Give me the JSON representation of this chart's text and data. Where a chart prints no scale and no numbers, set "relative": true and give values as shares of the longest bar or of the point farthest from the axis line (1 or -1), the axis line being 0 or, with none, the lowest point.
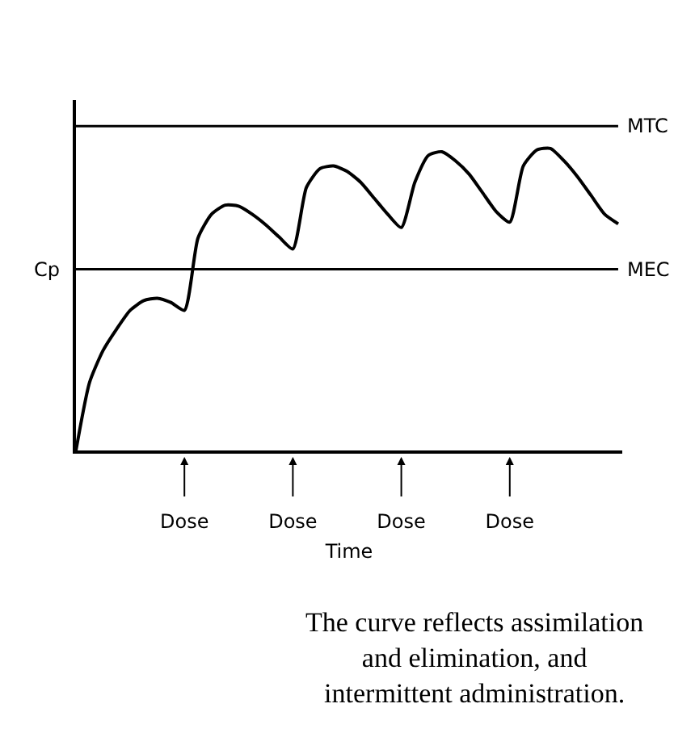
{
  "chart_data": {
    "type": "line",
    "relative": true,
    "xlabel": "Time",
    "ylabel": "Cp",
    "categories": [
      null,
      null,
      null,
      null,
      null,
      null,
      null,
      null,
      "Dose",
      null,
      null,
      null,
      null,
      null,
      null,
      null,
      "Dose",
      null,
      null,
      null,
      null,
      null,
      null,
      null,
      "Dose",
      null,
      null,
      null,
      null,
      null,
      null,
      null,
      "Dose",
      null,
      null,
      null,
      null,
      null,
      null,
      null,
      null
    ],
    "series": [
      {
        "color": "#000000",
        "values": [
          0,
          0.225,
          0.331,
          0.402,
          0.464,
          0.496,
          0.504,
          0.49,
          0.464,
          0.703,
          0.782,
          0.812,
          0.809,
          0.782,
          0.747,
          0.706,
          0.667,
          0.871,
          0.933,
          0.942,
          0.924,
          0.888,
          0.835,
          0.782,
          0.738,
          0.888,
          0.977,
          0.989,
          0.959,
          0.915,
          0.853,
          0.791,
          0.756,
          0.942,
          0.995,
          1.0,
          0.959,
          0.906,
          0.844,
          0.782,
          0.75
        ]
      }
    ],
    "ref_lines": [
      {
        "axis": "y",
        "value": 1.074,
        "label": "MTC",
        "color": "#000000"
      },
      {
        "axis": "y",
        "value": 0.6,
        "label": "MEC",
        "color": "#000000"
      }
    ],
    "annotations": [
      "The curve reflects assimilation\nand elimination, and\nintermittent administration."
    ],
    "marker": "none",
    "line_style": "solid"
  }
}
